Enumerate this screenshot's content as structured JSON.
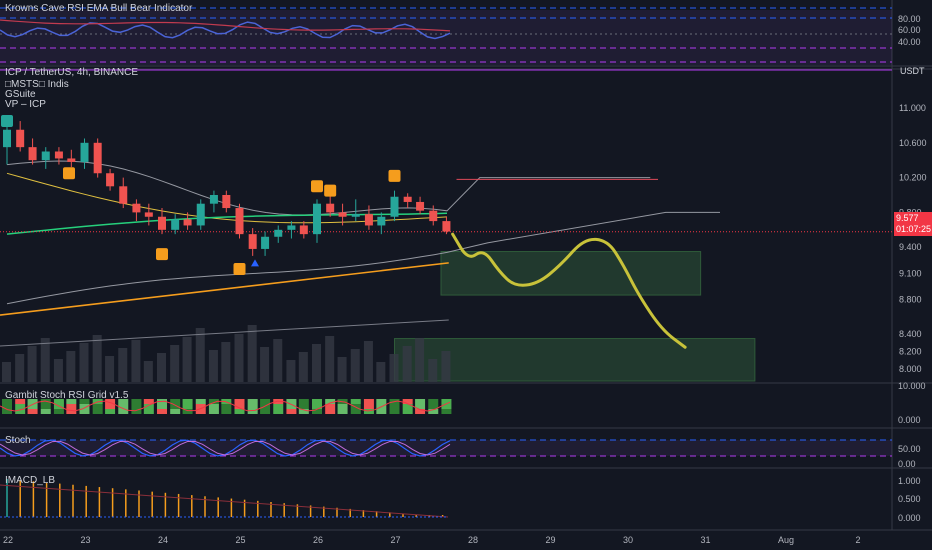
{
  "rsi_pane": {
    "title": "Krowns Cave RSI EMA Bull Bear Indicator",
    "axis_ticks": [
      "80.00",
      "60.00",
      "40.00"
    ]
  },
  "main_pane": {
    "symbol_line": "ICP / TetherUS, 4h, BINANCE",
    "indicators": [
      "□MSTS□ Indis",
      "GSuite",
      "VP – ICP"
    ],
    "currency": "USDT",
    "last_price": "9.577",
    "countdown": "01:07:25"
  },
  "gambit_pane": {
    "title": "Gambit Stoch RSI Grid v1.5",
    "axis_ticks": [
      "10.000",
      "0.000"
    ]
  },
  "stoch_pane": {
    "title": "Stoch",
    "axis_ticks": [
      "50.00",
      "0.00"
    ]
  },
  "imacd_pane": {
    "title": "IMACD_LB",
    "axis_ticks": [
      "1.000",
      "0.500",
      "0.000"
    ]
  },
  "time_axis": [
    "22",
    "23",
    "24",
    "25",
    "26",
    "27",
    "28",
    "29",
    "30",
    "31",
    "Aug",
    "2"
  ],
  "colors": {
    "up": "#26a69a",
    "down": "#ef5350",
    "projection": "#c8c23a",
    "zone": "#2f5b3a",
    "ema_long": "#f59d1d",
    "ema_mid": "#e0c040",
    "ema_fast": "#26d07c",
    "bands": "#9598a1"
  },
  "chart_data": {
    "type": "candlestick",
    "interval": "4h",
    "price_axis_ticks": [
      11.0,
      10.6,
      10.2,
      9.8,
      9.4,
      9.1,
      8.8,
      8.4,
      8.2,
      8.0
    ],
    "ylim": [
      7.85,
      11.35
    ],
    "xlim_days": [
      22,
      32.7
    ],
    "candles": [
      {
        "t": 22.0,
        "o": 10.55,
        "h": 10.8,
        "l": 10.35,
        "c": 10.75
      },
      {
        "t": 22.17,
        "o": 10.75,
        "h": 10.85,
        "l": 10.5,
        "c": 10.55
      },
      {
        "t": 22.33,
        "o": 10.55,
        "h": 10.65,
        "l": 10.35,
        "c": 10.4
      },
      {
        "t": 22.5,
        "o": 10.4,
        "h": 10.55,
        "l": 10.3,
        "c": 10.5
      },
      {
        "t": 22.67,
        "o": 10.5,
        "h": 10.55,
        "l": 10.35,
        "c": 10.42
      },
      {
        "t": 22.83,
        "o": 10.42,
        "h": 10.52,
        "l": 10.32,
        "c": 10.38
      },
      {
        "t": 23.0,
        "o": 10.38,
        "h": 10.65,
        "l": 10.3,
        "c": 10.6
      },
      {
        "t": 23.17,
        "o": 10.6,
        "h": 10.65,
        "l": 10.2,
        "c": 10.25
      },
      {
        "t": 23.33,
        "o": 10.25,
        "h": 10.3,
        "l": 10.05,
        "c": 10.1
      },
      {
        "t": 23.5,
        "o": 10.1,
        "h": 10.2,
        "l": 9.85,
        "c": 9.9
      },
      {
        "t": 23.67,
        "o": 9.9,
        "h": 9.95,
        "l": 9.7,
        "c": 9.8
      },
      {
        "t": 23.83,
        "o": 9.8,
        "h": 9.9,
        "l": 9.65,
        "c": 9.75
      },
      {
        "t": 24.0,
        "o": 9.75,
        "h": 9.85,
        "l": 9.55,
        "c": 9.6
      },
      {
        "t": 24.17,
        "o": 9.6,
        "h": 9.78,
        "l": 9.55,
        "c": 9.72
      },
      {
        "t": 24.33,
        "o": 9.72,
        "h": 9.8,
        "l": 9.6,
        "c": 9.65
      },
      {
        "t": 24.5,
        "o": 9.65,
        "h": 9.95,
        "l": 9.6,
        "c": 9.9
      },
      {
        "t": 24.67,
        "o": 9.9,
        "h": 10.05,
        "l": 9.8,
        "c": 10.0
      },
      {
        "t": 24.83,
        "o": 10.0,
        "h": 10.05,
        "l": 9.8,
        "c": 9.85
      },
      {
        "t": 25.0,
        "o": 9.85,
        "h": 9.9,
        "l": 9.5,
        "c": 9.55
      },
      {
        "t": 25.17,
        "o": 9.55,
        "h": 9.62,
        "l": 9.3,
        "c": 9.38
      },
      {
        "t": 25.33,
        "o": 9.38,
        "h": 9.58,
        "l": 9.3,
        "c": 9.52
      },
      {
        "t": 25.5,
        "o": 9.52,
        "h": 9.65,
        "l": 9.45,
        "c": 9.6
      },
      {
        "t": 25.67,
        "o": 9.6,
        "h": 9.7,
        "l": 9.5,
        "c": 9.65
      },
      {
        "t": 25.83,
        "o": 9.65,
        "h": 9.7,
        "l": 9.5,
        "c": 9.55
      },
      {
        "t": 26.0,
        "o": 9.55,
        "h": 9.95,
        "l": 9.45,
        "c": 9.9
      },
      {
        "t": 26.17,
        "o": 9.9,
        "h": 10.05,
        "l": 9.75,
        "c": 9.8
      },
      {
        "t": 26.33,
        "o": 9.8,
        "h": 9.9,
        "l": 9.65,
        "c": 9.75
      },
      {
        "t": 26.5,
        "o": 9.75,
        "h": 9.95,
        "l": 9.7,
        "c": 9.78
      },
      {
        "t": 26.67,
        "o": 9.78,
        "h": 9.88,
        "l": 9.6,
        "c": 9.65
      },
      {
        "t": 26.83,
        "o": 9.65,
        "h": 9.8,
        "l": 9.55,
        "c": 9.75
      },
      {
        "t": 27.0,
        "o": 9.75,
        "h": 10.05,
        "l": 9.7,
        "c": 9.98
      },
      {
        "t": 27.17,
        "o": 9.98,
        "h": 10.02,
        "l": 9.85,
        "c": 9.92
      },
      {
        "t": 27.33,
        "o": 9.92,
        "h": 9.98,
        "l": 9.78,
        "c": 9.82
      },
      {
        "t": 27.5,
        "o": 9.82,
        "h": 9.88,
        "l": 9.65,
        "c": 9.7
      },
      {
        "t": 27.67,
        "o": 9.7,
        "h": 9.75,
        "l": 9.55,
        "c": 9.58
      }
    ],
    "projection": [
      [
        27.75,
        9.55
      ],
      [
        27.95,
        9.25
      ],
      [
        28.15,
        9.38
      ],
      [
        28.35,
        9.12
      ],
      [
        28.55,
        8.95
      ],
      [
        28.85,
        8.98
      ],
      [
        29.15,
        9.2
      ],
      [
        29.45,
        9.5
      ],
      [
        29.75,
        9.48
      ],
      [
        29.95,
        9.2
      ],
      [
        30.15,
        8.85
      ],
      [
        30.45,
        8.45
      ],
      [
        30.75,
        8.25
      ]
    ],
    "zones": [
      {
        "t0": 27.6,
        "t1": 30.95,
        "p0": 8.85,
        "p1": 9.35
      },
      {
        "t0": 27.0,
        "t1": 31.65,
        "p0": 7.85,
        "p1": 8.35
      }
    ]
  }
}
